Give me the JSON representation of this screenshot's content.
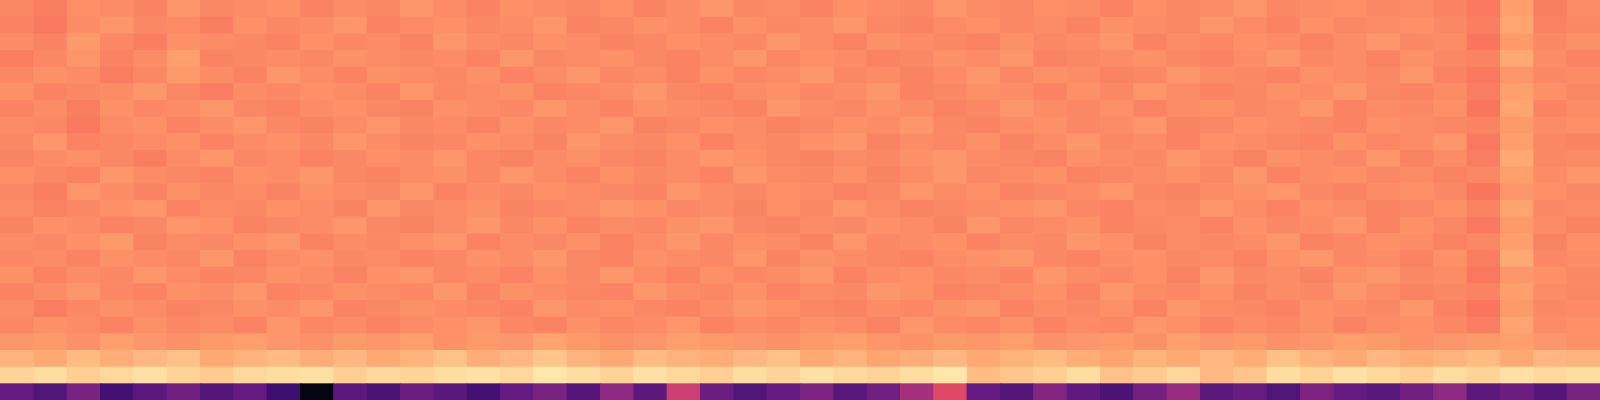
{
  "chart_data": {
    "type": "heatmap",
    "color": "magma",
    "tick_labels": false,
    "zlim": [
      0,
      1
    ],
    "cells": [
      [
        0.75,
        0.73,
        0.77,
        0.76,
        0.74,
        0.78,
        0.75,
        0.76,
        0.77,
        0.74,
        0.76,
        0.75,
        0.78,
        0.76,
        0.74,
        0.77,
        0.76,
        0.75,
        0.77,
        0.74,
        0.76,
        0.78,
        0.75,
        0.76,
        0.74,
        0.77,
        0.76,
        0.75,
        0.78,
        0.76,
        0.75,
        0.77,
        0.76,
        0.74,
        0.77,
        0.75,
        0.76,
        0.78,
        0.75,
        0.76,
        0.77,
        0.75,
        0.76,
        0.74,
        0.72,
        0.8,
        0.73,
        0.76
      ],
      [
        0.74,
        0.72,
        0.76,
        0.78,
        0.75,
        0.76,
        0.73,
        0.77,
        0.75,
        0.76,
        0.78,
        0.74,
        0.76,
        0.77,
        0.75,
        0.76,
        0.78,
        0.74,
        0.75,
        0.77,
        0.76,
        0.74,
        0.77,
        0.75,
        0.76,
        0.78,
        0.75,
        0.74,
        0.76,
        0.77,
        0.75,
        0.76,
        0.74,
        0.77,
        0.76,
        0.75,
        0.78,
        0.76,
        0.74,
        0.77,
        0.75,
        0.76,
        0.77,
        0.75,
        0.73,
        0.81,
        0.74,
        0.75
      ],
      [
        0.76,
        0.74,
        0.79,
        0.75,
        0.73,
        0.77,
        0.76,
        0.75,
        0.74,
        0.77,
        0.75,
        0.76,
        0.74,
        0.78,
        0.76,
        0.75,
        0.77,
        0.76,
        0.74,
        0.75,
        0.77,
        0.76,
        0.75,
        0.78,
        0.76,
        0.74,
        0.77,
        0.76,
        0.75,
        0.74,
        0.77,
        0.75,
        0.76,
        0.78,
        0.74,
        0.76,
        0.75,
        0.77,
        0.76,
        0.74,
        0.76,
        0.78,
        0.75,
        0.76,
        0.71,
        0.79,
        0.75,
        0.77
      ],
      [
        0.73,
        0.75,
        0.78,
        0.74,
        0.76,
        0.8,
        0.74,
        0.75,
        0.76,
        0.75,
        0.77,
        0.76,
        0.75,
        0.76,
        0.74,
        0.78,
        0.75,
        0.76,
        0.77,
        0.75,
        0.74,
        0.76,
        0.78,
        0.75,
        0.77,
        0.76,
        0.74,
        0.75,
        0.77,
        0.76,
        0.78,
        0.74,
        0.75,
        0.76,
        0.77,
        0.75,
        0.74,
        0.76,
        0.78,
        0.75,
        0.76,
        0.74,
        0.77,
        0.75,
        0.74,
        0.82,
        0.76,
        0.74
      ],
      [
        0.75,
        0.77,
        0.76,
        0.73,
        0.75,
        0.79,
        0.76,
        0.74,
        0.78,
        0.76,
        0.74,
        0.77,
        0.76,
        0.75,
        0.77,
        0.74,
        0.76,
        0.78,
        0.75,
        0.76,
        0.74,
        0.77,
        0.75,
        0.76,
        0.78,
        0.75,
        0.76,
        0.74,
        0.76,
        0.78,
        0.75,
        0.77,
        0.76,
        0.74,
        0.75,
        0.78,
        0.76,
        0.75,
        0.74,
        0.77,
        0.76,
        0.75,
        0.78,
        0.74,
        0.72,
        0.78,
        0.75,
        0.76
      ],
      [
        0.77,
        0.74,
        0.75,
        0.76,
        0.78,
        0.75,
        0.73,
        0.76,
        0.75,
        0.77,
        0.76,
        0.74,
        0.78,
        0.75,
        0.76,
        0.77,
        0.74,
        0.75,
        0.76,
        0.78,
        0.75,
        0.74,
        0.76,
        0.77,
        0.75,
        0.76,
        0.78,
        0.74,
        0.75,
        0.77,
        0.76,
        0.74,
        0.77,
        0.75,
        0.78,
        0.76,
        0.74,
        0.75,
        0.77,
        0.76,
        0.78,
        0.75,
        0.74,
        0.76,
        0.73,
        0.8,
        0.77,
        0.75
      ],
      [
        0.74,
        0.76,
        0.73,
        0.77,
        0.75,
        0.76,
        0.78,
        0.75,
        0.74,
        0.76,
        0.77,
        0.75,
        0.74,
        0.77,
        0.76,
        0.75,
        0.78,
        0.76,
        0.74,
        0.77,
        0.76,
        0.75,
        0.74,
        0.78,
        0.76,
        0.75,
        0.77,
        0.76,
        0.74,
        0.75,
        0.78,
        0.76,
        0.75,
        0.77,
        0.74,
        0.76,
        0.77,
        0.75,
        0.76,
        0.78,
        0.74,
        0.76,
        0.75,
        0.77,
        0.71,
        0.81,
        0.74,
        0.76
      ],
      [
        0.76,
        0.75,
        0.72,
        0.76,
        0.77,
        0.74,
        0.76,
        0.78,
        0.75,
        0.74,
        0.76,
        0.78,
        0.75,
        0.76,
        0.74,
        0.77,
        0.75,
        0.76,
        0.78,
        0.74,
        0.75,
        0.77,
        0.76,
        0.74,
        0.75,
        0.77,
        0.76,
        0.78,
        0.75,
        0.74,
        0.76,
        0.77,
        0.75,
        0.76,
        0.78,
        0.74,
        0.75,
        0.77,
        0.76,
        0.75,
        0.74,
        0.77,
        0.76,
        0.75,
        0.74,
        0.79,
        0.76,
        0.77
      ],
      [
        0.75,
        0.78,
        0.74,
        0.75,
        0.76,
        0.77,
        0.74,
        0.76,
        0.77,
        0.75,
        0.78,
        0.76,
        0.74,
        0.75,
        0.77,
        0.76,
        0.74,
        0.78,
        0.76,
        0.75,
        0.77,
        0.74,
        0.76,
        0.75,
        0.77,
        0.78,
        0.74,
        0.76,
        0.75,
        0.77,
        0.74,
        0.76,
        0.78,
        0.75,
        0.76,
        0.74,
        0.77,
        0.76,
        0.75,
        0.74,
        0.77,
        0.75,
        0.76,
        0.78,
        0.72,
        0.8,
        0.75,
        0.74
      ],
      [
        0.74,
        0.76,
        0.77,
        0.75,
        0.73,
        0.76,
        0.78,
        0.75,
        0.76,
        0.74,
        0.75,
        0.77,
        0.76,
        0.78,
        0.75,
        0.74,
        0.76,
        0.77,
        0.75,
        0.74,
        0.76,
        0.78,
        0.77,
        0.75,
        0.74,
        0.76,
        0.75,
        0.77,
        0.78,
        0.76,
        0.75,
        0.74,
        0.77,
        0.76,
        0.75,
        0.78,
        0.76,
        0.74,
        0.77,
        0.76,
        0.75,
        0.78,
        0.74,
        0.76,
        0.73,
        0.82,
        0.75,
        0.76
      ],
      [
        0.77,
        0.75,
        0.74,
        0.78,
        0.76,
        0.75,
        0.74,
        0.77,
        0.76,
        0.78,
        0.75,
        0.74,
        0.76,
        0.77,
        0.75,
        0.78,
        0.76,
        0.74,
        0.77,
        0.75,
        0.76,
        0.74,
        0.78,
        0.76,
        0.75,
        0.77,
        0.74,
        0.76,
        0.78,
        0.75,
        0.76,
        0.77,
        0.74,
        0.75,
        0.76,
        0.77,
        0.75,
        0.78,
        0.74,
        0.76,
        0.77,
        0.75,
        0.76,
        0.74,
        0.75,
        0.8,
        0.76,
        0.78
      ],
      [
        0.75,
        0.73,
        0.78,
        0.76,
        0.74,
        0.77,
        0.75,
        0.76,
        0.74,
        0.77,
        0.76,
        0.75,
        0.78,
        0.74,
        0.76,
        0.75,
        0.77,
        0.76,
        0.75,
        0.74,
        0.78,
        0.76,
        0.75,
        0.77,
        0.76,
        0.74,
        0.75,
        0.78,
        0.76,
        0.77,
        0.74,
        0.75,
        0.76,
        0.78,
        0.75,
        0.74,
        0.76,
        0.77,
        0.78,
        0.75,
        0.74,
        0.76,
        0.77,
        0.75,
        0.71,
        0.78,
        0.77,
        0.75
      ],
      [
        0.76,
        0.74,
        0.75,
        0.77,
        0.78,
        0.74,
        0.76,
        0.75,
        0.77,
        0.76,
        0.74,
        0.78,
        0.75,
        0.76,
        0.77,
        0.74,
        0.75,
        0.76,
        0.78,
        0.77,
        0.75,
        0.76,
        0.74,
        0.77,
        0.75,
        0.78,
        0.76,
        0.74,
        0.75,
        0.76,
        0.77,
        0.78,
        0.75,
        0.74,
        0.76,
        0.75,
        0.78,
        0.76,
        0.74,
        0.77,
        0.76,
        0.74,
        0.75,
        0.77,
        0.74,
        0.81,
        0.75,
        0.76
      ],
      [
        0.74,
        0.77,
        0.76,
        0.74,
        0.75,
        0.78,
        0.77,
        0.74,
        0.75,
        0.76,
        0.78,
        0.75,
        0.74,
        0.76,
        0.78,
        0.75,
        0.77,
        0.74,
        0.76,
        0.75,
        0.77,
        0.78,
        0.75,
        0.74,
        0.76,
        0.75,
        0.77,
        0.76,
        0.74,
        0.78,
        0.75,
        0.76,
        0.77,
        0.74,
        0.75,
        0.76,
        0.74,
        0.77,
        0.75,
        0.76,
        0.78,
        0.74,
        0.77,
        0.75,
        0.72,
        0.79,
        0.76,
        0.74
      ],
      [
        0.76,
        0.75,
        0.77,
        0.79,
        0.74,
        0.76,
        0.75,
        0.77,
        0.78,
        0.74,
        0.76,
        0.75,
        0.77,
        0.78,
        0.74,
        0.76,
        0.75,
        0.77,
        0.74,
        0.76,
        0.78,
        0.75,
        0.77,
        0.76,
        0.74,
        0.78,
        0.75,
        0.76,
        0.77,
        0.74,
        0.76,
        0.75,
        0.78,
        0.77,
        0.74,
        0.76,
        0.75,
        0.76,
        0.78,
        0.74,
        0.75,
        0.77,
        0.76,
        0.74,
        0.75,
        0.8,
        0.74,
        0.77
      ],
      [
        0.75,
        0.76,
        0.74,
        0.77,
        0.76,
        0.75,
        0.78,
        0.74,
        0.76,
        0.77,
        0.75,
        0.76,
        0.74,
        0.75,
        0.77,
        0.76,
        0.78,
        0.75,
        0.74,
        0.77,
        0.76,
        0.75,
        0.78,
        0.74,
        0.77,
        0.76,
        0.75,
        0.74,
        0.76,
        0.77,
        0.78,
        0.75,
        0.74,
        0.76,
        0.77,
        0.75,
        0.76,
        0.74,
        0.77,
        0.78,
        0.75,
        0.76,
        0.74,
        0.77,
        0.73,
        0.82,
        0.75,
        0.76
      ],
      [
        0.77,
        0.74,
        0.76,
        0.75,
        0.78,
        0.76,
        0.74,
        0.75,
        0.77,
        0.76,
        0.74,
        0.77,
        0.78,
        0.75,
        0.76,
        0.74,
        0.77,
        0.75,
        0.78,
        0.76,
        0.74,
        0.77,
        0.75,
        0.76,
        0.78,
        0.74,
        0.76,
        0.77,
        0.75,
        0.76,
        0.74,
        0.78,
        0.76,
        0.75,
        0.77,
        0.74,
        0.78,
        0.75,
        0.76,
        0.74,
        0.77,
        0.78,
        0.75,
        0.76,
        0.72,
        0.78,
        0.77,
        0.75
      ],
      [
        0.74,
        0.76,
        0.78,
        0.75,
        0.74,
        0.77,
        0.76,
        0.78,
        0.74,
        0.75,
        0.77,
        0.76,
        0.75,
        0.78,
        0.74,
        0.77,
        0.76,
        0.75,
        0.74,
        0.78,
        0.76,
        0.75,
        0.77,
        0.74,
        0.76,
        0.75,
        0.78,
        0.77,
        0.74,
        0.75,
        0.76,
        0.77,
        0.74,
        0.78,
        0.76,
        0.75,
        0.77,
        0.74,
        0.76,
        0.75,
        0.78,
        0.76,
        0.74,
        0.75,
        0.74,
        0.8,
        0.76,
        0.75
      ],
      [
        0.76,
        0.73,
        0.75,
        0.77,
        0.76,
        0.74,
        0.75,
        0.77,
        0.76,
        0.78,
        0.74,
        0.75,
        0.77,
        0.76,
        0.75,
        0.74,
        0.78,
        0.76,
        0.77,
        0.75,
        0.74,
        0.76,
        0.78,
        0.77,
        0.75,
        0.74,
        0.76,
        0.75,
        0.77,
        0.78,
        0.74,
        0.76,
        0.75,
        0.77,
        0.74,
        0.78,
        0.76,
        0.75,
        0.74,
        0.77,
        0.76,
        0.75,
        0.78,
        0.74,
        0.71,
        0.79,
        0.75,
        0.76
      ],
      [
        0.75,
        0.77,
        0.76,
        0.74,
        0.77,
        0.75,
        0.76,
        0.74,
        0.78,
        0.75,
        0.76,
        0.74,
        0.76,
        0.77,
        0.78,
        0.75,
        0.74,
        0.77,
        0.75,
        0.76,
        0.78,
        0.74,
        0.76,
        0.75,
        0.77,
        0.76,
        0.74,
        0.78,
        0.76,
        0.75,
        0.77,
        0.74,
        0.76,
        0.75,
        0.78,
        0.77,
        0.74,
        0.76,
        0.75,
        0.77,
        0.74,
        0.76,
        0.77,
        0.75,
        0.73,
        0.81,
        0.76,
        0.77
      ],
      [
        0.78,
        0.79,
        0.77,
        0.8,
        0.78,
        0.77,
        0.79,
        0.8,
        0.78,
        0.77,
        0.79,
        0.78,
        0.8,
        0.77,
        0.79,
        0.78,
        0.81,
        0.79,
        0.77,
        0.78,
        0.8,
        0.79,
        0.78,
        0.77,
        0.79,
        0.8,
        0.78,
        0.77,
        0.79,
        0.78,
        0.8,
        0.77,
        0.78,
        0.79,
        0.77,
        0.8,
        0.78,
        0.79,
        0.77,
        0.78,
        0.8,
        0.79,
        0.77,
        0.78,
        0.79,
        0.8,
        0.78,
        0.77
      ],
      [
        0.84,
        0.82,
        0.86,
        0.83,
        0.85,
        0.87,
        0.82,
        0.84,
        0.86,
        0.83,
        0.85,
        0.82,
        0.84,
        0.87,
        0.83,
        0.85,
        0.88,
        0.84,
        0.82,
        0.86,
        0.84,
        0.83,
        0.85,
        0.87,
        0.82,
        0.84,
        0.81,
        0.83,
        0.85,
        0.82,
        0.84,
        0.86,
        0.83,
        0.81,
        0.84,
        0.82,
        0.85,
        0.83,
        0.87,
        0.84,
        0.82,
        0.85,
        0.83,
        0.84,
        0.86,
        0.82,
        0.85,
        0.84
      ],
      [
        0.91,
        0.93,
        0.9,
        0.92,
        0.94,
        0.91,
        0.89,
        0.92,
        0.93,
        0.94,
        0.9,
        0.92,
        0.91,
        0.93,
        0.94,
        0.92,
        0.95,
        0.93,
        0.91,
        0.94,
        0.92,
        0.9,
        0.93,
        0.91,
        0.94,
        0.92,
        0.91,
        0.93,
        0.95,
        0.86,
        0.88,
        0.9,
        0.93,
        0.87,
        0.89,
        0.92,
        0.85,
        0.88,
        0.93,
        0.91,
        0.94,
        0.92,
        0.9,
        0.93,
        0.91,
        0.94,
        0.92,
        0.93
      ],
      [
        0.3,
        0.25,
        0.35,
        0.22,
        0.28,
        0.33,
        0.26,
        0.3,
        0.2,
        0.03,
        0.28,
        0.24,
        0.32,
        0.27,
        0.22,
        0.3,
        0.35,
        0.26,
        0.4,
        0.28,
        0.55,
        0.32,
        0.25,
        0.3,
        0.36,
        0.27,
        0.33,
        0.45,
        0.6,
        0.3,
        0.26,
        0.38,
        0.29,
        0.24,
        0.34,
        0.42,
        0.28,
        0.31,
        0.25,
        0.36,
        0.3,
        0.27,
        0.33,
        0.4,
        0.28,
        0.32,
        0.26,
        0.35
      ]
    ]
  }
}
